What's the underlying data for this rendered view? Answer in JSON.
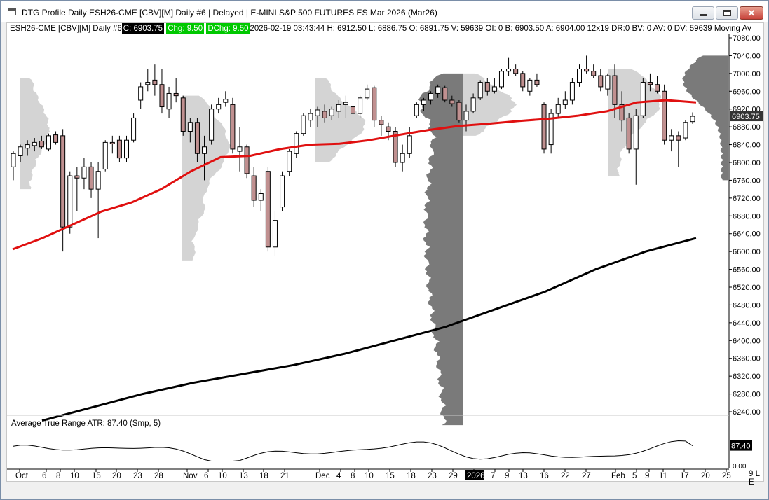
{
  "window": {
    "title": "DTG Profile Daily ESH26-CME [CBV][M]  Daily #6 | Delayed | E-MINI S&P 500 FUTURES ES Mar 2026 (Mar26)",
    "min_label": "minimize",
    "max_label": "maximize",
    "close_label": "close"
  },
  "status": {
    "symbol": "ESH26-CME [CBV][M]  Daily #6 ",
    "close_value": "C: 6903.75",
    "chg_value": "Chg: 9.50",
    "dchg_value": "DChg: 9.50",
    "rest": " 2026-02-19 03:43:44 H: 6912.50 L: 6886.75 O: 6891.75 V: 59639 OI: 0 B: 6903.50 A: 6904.00 12x19 DR:0 BV: 0 AV: 0 DV: 59639 Moving Av"
  },
  "atr": {
    "label": "Average True Range  ATR: 87.40  (Smp, 5)",
    "value_tag": "87.40",
    "zero_tag": "0.00"
  },
  "price_axis": {
    "ticks": [
      "7080.00",
      "7040.00",
      "7000.00",
      "6960.00",
      "6920.00",
      "6880.00",
      "6840.00",
      "6800.00",
      "6760.00",
      "6720.00",
      "6680.00",
      "6640.00",
      "6600.00",
      "6560.00",
      "6520.00",
      "6480.00",
      "6440.00",
      "6400.00",
      "6360.00",
      "6320.00",
      "6280.00",
      "6240.00"
    ],
    "last_price_tag": "6903.75"
  },
  "date_axis": {
    "labels": [
      "Oct",
      "6",
      "8",
      "10",
      "15",
      "20",
      "23",
      "28",
      "Nov",
      "6",
      "10",
      "13",
      "18",
      "21",
      "Dec",
      "4",
      "8",
      "10",
      "15",
      "18",
      "23",
      "29",
      "2026",
      "7",
      "9",
      "13",
      "16",
      "22",
      "27",
      "Feb",
      "5",
      "9",
      "11",
      "17",
      "20",
      "25"
    ],
    "highlight": "2026"
  },
  "corner_label": "9 L E",
  "colors": {
    "up_candle": "#ffffff",
    "down_candle": "#c09090",
    "ma_red": "#e01010",
    "ma_black": "#000000",
    "profile_light": "#d4d4d4",
    "profile_dark": "#7a7a7a"
  },
  "chart_data": {
    "type": "candlestick",
    "y_unit": "price",
    "ylim": [
      6210,
      7110
    ],
    "candles": [
      {
        "x": "Oct 1",
        "o": 6790,
        "h": 6825,
        "l": 6760,
        "c": 6820
      },
      {
        "x": "Oct 2",
        "o": 6815,
        "h": 6840,
        "l": 6800,
        "c": 6835
      },
      {
        "x": "Oct 3",
        "o": 6832,
        "h": 6850,
        "l": 6815,
        "c": 6840
      },
      {
        "x": "Oct 6",
        "o": 6838,
        "h": 6855,
        "l": 6825,
        "c": 6845
      },
      {
        "x": "Oct 7",
        "o": 6848,
        "h": 6860,
        "l": 6830,
        "c": 6835
      },
      {
        "x": "Oct 8",
        "o": 6830,
        "h": 6865,
        "l": 6825,
        "c": 6860
      },
      {
        "x": "Oct 9",
        "o": 6862,
        "h": 6870,
        "l": 6840,
        "c": 6845
      },
      {
        "x": "Oct 10",
        "o": 6860,
        "h": 6875,
        "l": 6600,
        "c": 6655
      },
      {
        "x": "Oct 13",
        "o": 6655,
        "h": 6780,
        "l": 6640,
        "c": 6770
      },
      {
        "x": "Oct 14",
        "o": 6770,
        "h": 6790,
        "l": 6690,
        "c": 6765
      },
      {
        "x": "Oct 15",
        "o": 6765,
        "h": 6810,
        "l": 6740,
        "c": 6790
      },
      {
        "x": "Oct 16",
        "o": 6790,
        "h": 6800,
        "l": 6720,
        "c": 6740
      },
      {
        "x": "Oct 17",
        "o": 6740,
        "h": 6800,
        "l": 6630,
        "c": 6780
      },
      {
        "x": "Oct 20",
        "o": 6785,
        "h": 6850,
        "l": 6780,
        "c": 6845
      },
      {
        "x": "Oct 21",
        "o": 6845,
        "h": 6860,
        "l": 6820,
        "c": 6842
      },
      {
        "x": "Oct 22",
        "o": 6850,
        "h": 6860,
        "l": 6800,
        "c": 6810
      },
      {
        "x": "Oct 23",
        "o": 6810,
        "h": 6860,
        "l": 6800,
        "c": 6850
      },
      {
        "x": "Oct 24",
        "o": 6850,
        "h": 6910,
        "l": 6845,
        "c": 6900
      },
      {
        "x": "Oct 27",
        "o": 6940,
        "h": 6980,
        "l": 6920,
        "c": 6970
      },
      {
        "x": "Oct 28",
        "o": 6975,
        "h": 7010,
        "l": 6960,
        "c": 6980
      },
      {
        "x": "Oct 29",
        "o": 6985,
        "h": 7020,
        "l": 6950,
        "c": 6975
      },
      {
        "x": "Oct 30",
        "o": 6975,
        "h": 7010,
        "l": 6910,
        "c": 6925
      },
      {
        "x": "Oct 31",
        "o": 6920,
        "h": 6970,
        "l": 6900,
        "c": 6955
      },
      {
        "x": "Nov 3",
        "o": 6955,
        "h": 6990,
        "l": 6935,
        "c": 6950
      },
      {
        "x": "Nov 4",
        "o": 6945,
        "h": 6950,
        "l": 6860,
        "c": 6870
      },
      {
        "x": "Nov 5",
        "o": 6870,
        "h": 6900,
        "l": 6845,
        "c": 6890
      },
      {
        "x": "Nov 6",
        "o": 6890,
        "h": 6900,
        "l": 6800,
        "c": 6820
      },
      {
        "x": "Nov 7",
        "o": 6820,
        "h": 6860,
        "l": 6760,
        "c": 6835
      },
      {
        "x": "Nov 10",
        "o": 6850,
        "h": 6930,
        "l": 6840,
        "c": 6920
      },
      {
        "x": "Nov 11",
        "o": 6920,
        "h": 6945,
        "l": 6910,
        "c": 6930
      },
      {
        "x": "Nov 12",
        "o": 6935,
        "h": 6960,
        "l": 6925,
        "c": 6942
      },
      {
        "x": "Nov 13",
        "o": 6930,
        "h": 6945,
        "l": 6820,
        "c": 6830
      },
      {
        "x": "Nov 14",
        "o": 6825,
        "h": 6880,
        "l": 6780,
        "c": 6835
      },
      {
        "x": "Nov 17",
        "o": 6835,
        "h": 6840,
        "l": 6765,
        "c": 6775
      },
      {
        "x": "Nov 18",
        "o": 6770,
        "h": 6790,
        "l": 6700,
        "c": 6715
      },
      {
        "x": "Nov 19",
        "o": 6715,
        "h": 6740,
        "l": 6690,
        "c": 6730
      },
      {
        "x": "Nov 20",
        "o": 6780,
        "h": 6790,
        "l": 6600,
        "c": 6610
      },
      {
        "x": "Nov 21",
        "o": 6610,
        "h": 6690,
        "l": 6590,
        "c": 6670
      },
      {
        "x": "Nov 24",
        "o": 6700,
        "h": 6780,
        "l": 6690,
        "c": 6770
      },
      {
        "x": "Nov 25",
        "o": 6780,
        "h": 6830,
        "l": 6770,
        "c": 6825
      },
      {
        "x": "Nov 26",
        "o": 6820,
        "h": 6870,
        "l": 6810,
        "c": 6865
      },
      {
        "x": "Nov 28",
        "o": 6865,
        "h": 6910,
        "l": 6860,
        "c": 6905
      },
      {
        "x": "Dec 1",
        "o": 6895,
        "h": 6920,
        "l": 6880,
        "c": 6910
      },
      {
        "x": "Dec 2",
        "o": 6905,
        "h": 6925,
        "l": 6880,
        "c": 6918
      },
      {
        "x": "Dec 3",
        "o": 6915,
        "h": 6930,
        "l": 6890,
        "c": 6900
      },
      {
        "x": "Dec 4",
        "o": 6905,
        "h": 6925,
        "l": 6895,
        "c": 6920
      },
      {
        "x": "Dec 5",
        "o": 6915,
        "h": 6940,
        "l": 6900,
        "c": 6930
      },
      {
        "x": "Dec 8",
        "o": 6930,
        "h": 6950,
        "l": 6900,
        "c": 6935
      },
      {
        "x": "Dec 9",
        "o": 6925,
        "h": 6945,
        "l": 6905,
        "c": 6910
      },
      {
        "x": "Dec 10",
        "o": 6910,
        "h": 6950,
        "l": 6900,
        "c": 6945
      },
      {
        "x": "Dec 11",
        "o": 6945,
        "h": 6975,
        "l": 6940,
        "c": 6965
      },
      {
        "x": "Dec 12",
        "o": 6968,
        "h": 6972,
        "l": 6880,
        "c": 6895
      },
      {
        "x": "Dec 15",
        "o": 6895,
        "h": 6905,
        "l": 6860,
        "c": 6885
      },
      {
        "x": "Dec 16",
        "o": 6880,
        "h": 6890,
        "l": 6850,
        "c": 6870
      },
      {
        "x": "Dec 17",
        "o": 6870,
        "h": 6880,
        "l": 6790,
        "c": 6800
      },
      {
        "x": "Dec 18",
        "o": 6800,
        "h": 6840,
        "l": 6780,
        "c": 6820
      },
      {
        "x": "Dec 19",
        "o": 6820,
        "h": 6880,
        "l": 6810,
        "c": 6860
      },
      {
        "x": "Dec 22",
        "o": 6905,
        "h": 6935,
        "l": 6900,
        "c": 6930
      },
      {
        "x": "Dec 23",
        "o": 6930,
        "h": 6945,
        "l": 6915,
        "c": 6940
      },
      {
        "x": "Dec 24",
        "o": 6940,
        "h": 6960,
        "l": 6930,
        "c": 6955
      },
      {
        "x": "Dec 26",
        "o": 6955,
        "h": 6975,
        "l": 6945,
        "c": 6970
      },
      {
        "x": "Dec 29",
        "o": 6968,
        "h": 6972,
        "l": 6935,
        "c": 6940
      },
      {
        "x": "Dec 30",
        "o": 6940,
        "h": 6950,
        "l": 6925,
        "c": 6932
      },
      {
        "x": "Dec 31",
        "o": 6935,
        "h": 6940,
        "l": 6890,
        "c": 6895
      },
      {
        "x": "Jan 2",
        "o": 6895,
        "h": 6930,
        "l": 6870,
        "c": 6915
      },
      {
        "x": "Jan 5",
        "o": 6915,
        "h": 6955,
        "l": 6910,
        "c": 6945
      },
      {
        "x": "Jan 6",
        "o": 6945,
        "h": 6985,
        "l": 6940,
        "c": 6980
      },
      {
        "x": "Jan 7",
        "o": 6980,
        "h": 6990,
        "l": 6950,
        "c": 6960
      },
      {
        "x": "Jan 8",
        "o": 6960,
        "h": 6990,
        "l": 6955,
        "c": 6970
      },
      {
        "x": "Jan 9",
        "o": 6970,
        "h": 7010,
        "l": 6965,
        "c": 7005
      },
      {
        "x": "Jan 12",
        "o": 7005,
        "h": 7035,
        "l": 6995,
        "c": 7010
      },
      {
        "x": "Jan 13",
        "o": 7010,
        "h": 7020,
        "l": 6995,
        "c": 7000
      },
      {
        "x": "Jan 14",
        "o": 7000,
        "h": 7005,
        "l": 6960,
        "c": 6970
      },
      {
        "x": "Jan 15",
        "o": 6960,
        "h": 6990,
        "l": 6950,
        "c": 6985
      },
      {
        "x": "Jan 16",
        "o": 6985,
        "h": 7000,
        "l": 6970,
        "c": 6975
      },
      {
        "x": "Jan 20",
        "o": 6930,
        "h": 6935,
        "l": 6820,
        "c": 6830
      },
      {
        "x": "Jan 21",
        "o": 6840,
        "h": 6920,
        "l": 6820,
        "c": 6910
      },
      {
        "x": "Jan 22",
        "o": 6910,
        "h": 6945,
        "l": 6900,
        "c": 6930
      },
      {
        "x": "Jan 23",
        "o": 6930,
        "h": 6960,
        "l": 6920,
        "c": 6940
      },
      {
        "x": "Jan 26",
        "o": 6940,
        "h": 6990,
        "l": 6930,
        "c": 6980
      },
      {
        "x": "Jan 27",
        "o": 6980,
        "h": 7020,
        "l": 6970,
        "c": 7010
      },
      {
        "x": "Jan 28",
        "o": 7010,
        "h": 7040,
        "l": 7000,
        "c": 7005
      },
      {
        "x": "Jan 29",
        "o": 7005,
        "h": 7020,
        "l": 6990,
        "c": 6995
      },
      {
        "x": "Jan 30",
        "o": 6995,
        "h": 7010,
        "l": 6960,
        "c": 6970
      },
      {
        "x": "Feb 2",
        "o": 6965,
        "h": 7000,
        "l": 6950,
        "c": 6995
      },
      {
        "x": "Feb 3",
        "o": 6995,
        "h": 7020,
        "l": 6900,
        "c": 6930
      },
      {
        "x": "Feb 4",
        "o": 6930,
        "h": 6960,
        "l": 6870,
        "c": 6895
      },
      {
        "x": "Feb 5",
        "o": 6900,
        "h": 6910,
        "l": 6820,
        "c": 6830
      },
      {
        "x": "Feb 6",
        "o": 6830,
        "h": 6920,
        "l": 6750,
        "c": 6905
      },
      {
        "x": "Feb 9",
        "o": 6905,
        "h": 6990,
        "l": 6900,
        "c": 6980
      },
      {
        "x": "Feb 10",
        "o": 6980,
        "h": 7000,
        "l": 6960,
        "c": 6975
      },
      {
        "x": "Feb 11",
        "o": 6975,
        "h": 6995,
        "l": 6955,
        "c": 6960
      },
      {
        "x": "Feb 12",
        "o": 6960,
        "h": 6975,
        "l": 6840,
        "c": 6850
      },
      {
        "x": "Feb 13",
        "o": 6850,
        "h": 6875,
        "l": 6825,
        "c": 6860
      },
      {
        "x": "Feb 17",
        "o": 6860,
        "h": 6870,
        "l": 6790,
        "c": 6850
      },
      {
        "x": "Feb 18",
        "o": 6855,
        "h": 6895,
        "l": 6850,
        "c": 6890
      },
      {
        "x": "Feb 19",
        "o": 6891.75,
        "h": 6912.5,
        "l": 6886.75,
        "c": 6903.75
      }
    ],
    "series": [
      {
        "type": "line",
        "values_note": "red moving average",
        "values": [
          6605,
          6630,
          6660,
          6690,
          6710,
          6740,
          6780,
          6812,
          6815,
          6830,
          6840,
          6842,
          6850,
          6862,
          6873,
          6882,
          6887,
          6893,
          6898,
          6905,
          6915,
          6935,
          6940,
          6935
        ]
      },
      {
        "type": "line",
        "values_note": "black moving average",
        "values": [
          6220,
          6250,
          6280,
          6305,
          6325,
          6345,
          6370,
          6400,
          6430,
          6470,
          6510,
          6560,
          6600,
          6630
        ]
      }
    ],
    "atr": {
      "current": 87.4,
      "ylim": [
        0,
        160
      ]
    }
  }
}
